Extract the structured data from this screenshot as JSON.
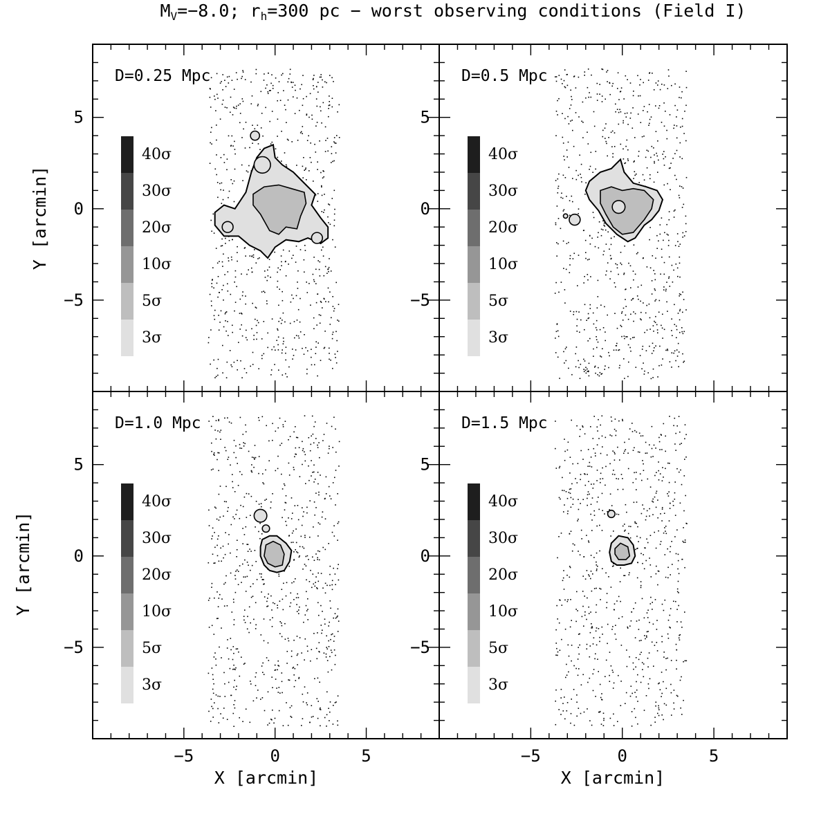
{
  "chart_data": {
    "type": "contour",
    "title": {
      "prefix": "M",
      "prefix_sub": "V",
      "mid1": "=−8.0; r",
      "mid_sub": "h",
      "suffix": "=300 pc − worst observing conditions (Field I)"
    },
    "xlabel": "X [arcmin]",
    "ylabel": "Y [arcmin]",
    "xlim": [
      -10,
      9
    ],
    "ylim": [
      -10,
      9
    ],
    "x_tick_labels": [
      "−5",
      "0",
      "5"
    ],
    "y_tick_labels": [
      "5",
      "0",
      "−5"
    ],
    "x_ticks": [
      -5,
      0,
      5
    ],
    "y_ticks": [
      5,
      0,
      -5
    ],
    "field_x_range": [
      -3.7,
      3.5
    ],
    "field_y_range": [
      -9.3,
      7.7
    ],
    "legend": {
      "levels": [
        "40σ",
        "30σ",
        "20σ",
        "10σ",
        "5σ",
        "3σ"
      ],
      "colors": [
        "#1e1e1e",
        "#464646",
        "#6e6e6e",
        "#969696",
        "#bebebe",
        "#e0e0e0"
      ]
    },
    "panels": [
      {
        "label": "D=0.25 Mpc",
        "contour_3sigma": [
          [
            -3.3,
            -0.2
          ],
          [
            -2.8,
            0.2
          ],
          [
            -2.2,
            0.0
          ],
          [
            -1.6,
            0.9
          ],
          [
            -1.3,
            2.0
          ],
          [
            -1.0,
            2.8
          ],
          [
            -0.6,
            3.3
          ],
          [
            -0.1,
            3.5
          ],
          [
            0.0,
            2.8
          ],
          [
            0.4,
            2.4
          ],
          [
            1.0,
            2.0
          ],
          [
            1.4,
            1.6
          ],
          [
            2.2,
            0.8
          ],
          [
            2.0,
            0.2
          ],
          [
            2.5,
            -0.5
          ],
          [
            2.9,
            -1.0
          ],
          [
            2.9,
            -1.6
          ],
          [
            2.5,
            -1.9
          ],
          [
            1.8,
            -1.6
          ],
          [
            1.3,
            -1.8
          ],
          [
            0.6,
            -1.7
          ],
          [
            0.0,
            -2.1
          ],
          [
            -0.4,
            -2.7
          ],
          [
            -0.8,
            -2.3
          ],
          [
            -1.4,
            -2.0
          ],
          [
            -2.0,
            -1.5
          ],
          [
            -2.8,
            -1.5
          ],
          [
            -3.3,
            -0.9
          ]
        ],
        "contour_5sigma": [
          [
            -1.2,
            0.8
          ],
          [
            -0.6,
            1.2
          ],
          [
            0.2,
            1.3
          ],
          [
            0.9,
            1.1
          ],
          [
            1.6,
            0.9
          ],
          [
            1.7,
            0.3
          ],
          [
            1.4,
            -0.4
          ],
          [
            1.2,
            -1.1
          ],
          [
            0.6,
            -1.0
          ],
          [
            0.2,
            -1.4
          ],
          [
            -0.3,
            -1.2
          ],
          [
            -0.8,
            -0.3
          ],
          [
            -1.2,
            0.2
          ]
        ],
        "blobs": [
          {
            "x": -1.1,
            "y": 4.0,
            "r": 0.25
          },
          {
            "x": -0.7,
            "y": 2.4,
            "r": 0.45
          },
          {
            "x": 2.3,
            "y": -1.6,
            "r": 0.3
          },
          {
            "x": -2.6,
            "y": -1.0,
            "r": 0.3
          }
        ]
      },
      {
        "label": "D=0.5 Mpc",
        "contour_3sigma": [
          [
            -1.8,
            1.5
          ],
          [
            -1.2,
            2.0
          ],
          [
            -0.6,
            2.2
          ],
          [
            -0.1,
            2.7
          ],
          [
            0.1,
            2.0
          ],
          [
            0.6,
            1.4
          ],
          [
            1.3,
            1.2
          ],
          [
            1.9,
            1.0
          ],
          [
            2.2,
            0.5
          ],
          [
            2.0,
            -0.1
          ],
          [
            1.6,
            -0.6
          ],
          [
            1.2,
            -0.9
          ],
          [
            0.7,
            -1.6
          ],
          [
            0.3,
            -1.8
          ],
          [
            -0.3,
            -1.4
          ],
          [
            -0.9,
            -0.8
          ],
          [
            -1.3,
            -0.1
          ],
          [
            -1.8,
            0.5
          ],
          [
            -2.0,
            1.0
          ]
        ],
        "contour_5sigma": [
          [
            -1.2,
            1.0
          ],
          [
            -0.6,
            1.2
          ],
          [
            0.0,
            1.0
          ],
          [
            0.6,
            1.1
          ],
          [
            1.2,
            1.0
          ],
          [
            1.7,
            0.5
          ],
          [
            1.6,
            0.0
          ],
          [
            1.2,
            -0.6
          ],
          [
            0.6,
            -1.3
          ],
          [
            0.0,
            -1.4
          ],
          [
            -0.5,
            -1.0
          ],
          [
            -0.9,
            -0.3
          ],
          [
            -1.2,
            0.3
          ]
        ],
        "blobs": [
          {
            "x": -2.6,
            "y": -0.6,
            "r": 0.3
          },
          {
            "x": -3.1,
            "y": -0.4,
            "r": 0.12
          },
          {
            "x": -0.2,
            "y": 0.1,
            "r": 0.35
          }
        ]
      },
      {
        "label": "D=1.0 Mpc",
        "contour_3sigma": [
          [
            -0.7,
            0.9
          ],
          [
            -0.3,
            1.1
          ],
          [
            0.1,
            1.1
          ],
          [
            0.6,
            0.7
          ],
          [
            0.9,
            0.3
          ],
          [
            0.8,
            -0.3
          ],
          [
            0.5,
            -0.8
          ],
          [
            0.1,
            -0.9
          ],
          [
            -0.3,
            -0.8
          ],
          [
            -0.6,
            -0.5
          ],
          [
            -0.8,
            0.0
          ],
          [
            -0.8,
            0.5
          ]
        ],
        "contour_5sigma": [
          [
            -0.5,
            0.6
          ],
          [
            -0.1,
            0.8
          ],
          [
            0.3,
            0.6
          ],
          [
            0.5,
            0.1
          ],
          [
            0.4,
            -0.5
          ],
          [
            0.0,
            -0.6
          ],
          [
            -0.4,
            -0.4
          ],
          [
            -0.6,
            0.0
          ]
        ],
        "blobs": [
          {
            "x": -0.8,
            "y": 2.2,
            "r": 0.35
          },
          {
            "x": -0.5,
            "y": 1.5,
            "r": 0.2
          }
        ]
      },
      {
        "label": "D=1.5 Mpc",
        "contour_3sigma": [
          [
            -0.6,
            0.7
          ],
          [
            -0.2,
            1.1
          ],
          [
            0.3,
            1.0
          ],
          [
            0.6,
            0.6
          ],
          [
            0.7,
            0.0
          ],
          [
            0.5,
            -0.4
          ],
          [
            0.1,
            -0.5
          ],
          [
            -0.3,
            -0.5
          ],
          [
            -0.6,
            -0.3
          ],
          [
            -0.7,
            0.2
          ]
        ],
        "contour_5sigma": [
          [
            -0.4,
            0.4
          ],
          [
            -0.1,
            0.7
          ],
          [
            0.3,
            0.5
          ],
          [
            0.4,
            0.0
          ],
          [
            0.2,
            -0.2
          ],
          [
            -0.2,
            -0.2
          ],
          [
            -0.4,
            0.1
          ]
        ],
        "blobs": [
          {
            "x": -0.6,
            "y": 2.3,
            "r": 0.2
          }
        ]
      }
    ]
  }
}
